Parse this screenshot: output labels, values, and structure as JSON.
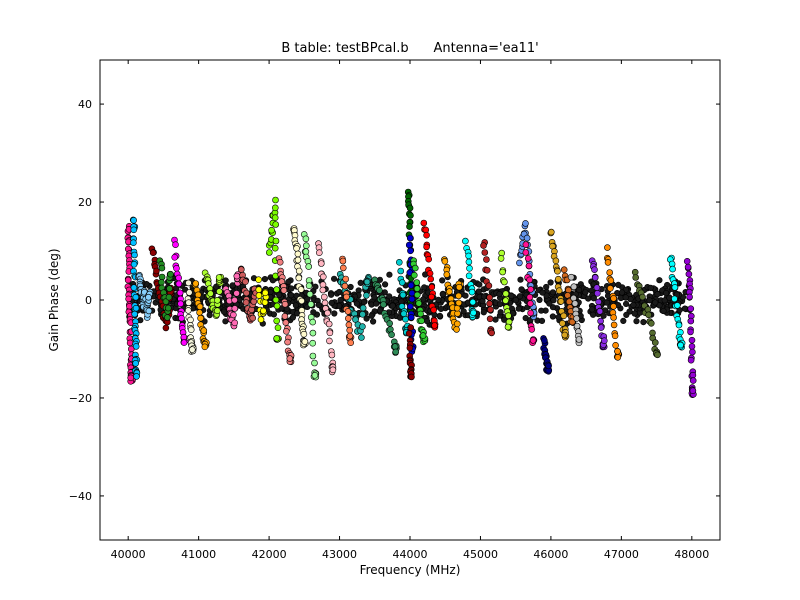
{
  "chart_data": {
    "type": "scatter",
    "title": "B table: testBPcal.b      Antenna='ea11'",
    "xlabel": "Frequency (MHz)",
    "ylabel": "Gain Phase (deg)",
    "xlim": [
      39600,
      48400
    ],
    "ylim": [
      -49,
      49
    ],
    "xticks": [
      40000,
      41000,
      42000,
      43000,
      44000,
      45000,
      46000,
      47000,
      48000
    ],
    "yticks": [
      -40,
      -20,
      0,
      20,
      40
    ],
    "xtick_labels": [
      "40000",
      "41000",
      "42000",
      "43000",
      "44000",
      "45000",
      "46000",
      "47000",
      "48000"
    ],
    "ytick_labels": [
      "−40",
      "−20",
      "0",
      "20",
      "40"
    ],
    "grid": false,
    "marker": "circle-with-black-edge",
    "series": [
      {
        "color": "#ff1493",
        "x": [
          40000,
          40000,
          40010,
          40010,
          40020,
          40030,
          40040,
          40050
        ],
        "y": [
          15,
          12,
          8,
          3,
          -2,
          -6,
          -12,
          -16
        ]
      },
      {
        "color": "#00bfff",
        "x": [
          40080,
          40085,
          40090,
          40095,
          40100,
          40105,
          40110,
          40115
        ],
        "y": [
          17,
          13,
          7,
          1,
          -4,
          -8,
          -12,
          -15
        ]
      },
      {
        "color": "#87cefa",
        "x": [
          40150,
          40180,
          40210,
          40240,
          40270,
          40300
        ],
        "y": [
          5,
          3,
          -1,
          2,
          -3,
          1
        ]
      },
      {
        "color": "#8b0000",
        "x": [
          40350,
          40400,
          40450,
          40500,
          40550,
          40600
        ],
        "y": [
          11,
          6,
          1,
          -3,
          -5,
          2
        ]
      },
      {
        "color": "#228b22",
        "x": [
          40450,
          40500,
          40550,
          40600
        ],
        "y": [
          8,
          2,
          -4,
          5
        ]
      },
      {
        "color": "#ff00ff",
        "x": [
          40650,
          40700,
          40750,
          40800
        ],
        "y": [
          12,
          5,
          -2,
          -8
        ]
      },
      {
        "color": "#f5f5dc",
        "x": [
          40850,
          40870,
          40890,
          40910
        ],
        "y": [
          3,
          -4,
          -8,
          -10
        ]
      },
      {
        "color": "#ffa500",
        "x": [
          40950,
          41000,
          41050,
          41100
        ],
        "y": [
          4,
          0,
          -6,
          -9
        ]
      },
      {
        "color": "#adff2f",
        "x": [
          41100,
          41150,
          41200,
          41250,
          41300
        ],
        "y": [
          6,
          2,
          -1,
          -3,
          4
        ]
      },
      {
        "color": "#ff69b4",
        "x": [
          41400,
          41450,
          41500,
          41550
        ],
        "y": [
          2,
          -3,
          -5,
          5
        ]
      },
      {
        "color": "#cd5c5c",
        "x": [
          41600,
          41650,
          41700,
          41750,
          41800
        ],
        "y": [
          6,
          3,
          -2,
          -4,
          2
        ]
      },
      {
        "color": "#ffff00",
        "x": [
          41850,
          41900,
          41950
        ],
        "y": [
          4,
          -4,
          1
        ]
      },
      {
        "color": "#7cfc00",
        "x": [
          42000,
          42050,
          42080,
          42100,
          42120
        ],
        "y": [
          10,
          15,
          20,
          5,
          -8
        ]
      },
      {
        "color": "#f08080",
        "x": [
          42150,
          42200,
          42250,
          42300
        ],
        "y": [
          8,
          3,
          -6,
          -12
        ]
      },
      {
        "color": "#fffacd",
        "x": [
          42350,
          42380,
          42410,
          42440,
          42470,
          42500
        ],
        "y": [
          15,
          12,
          8,
          2,
          -5,
          -9
        ]
      },
      {
        "color": "#98fb98",
        "x": [
          42500,
          42550,
          42600,
          42650
        ],
        "y": [
          13,
          8,
          -3,
          -15
        ]
      },
      {
        "color": "#ffb6c1",
        "x": [
          42700,
          42750,
          42800,
          42850,
          42900
        ],
        "y": [
          11,
          5,
          -1,
          -6,
          -14
        ]
      },
      {
        "color": "#20b2aa",
        "x": [
          43000,
          43100,
          43200,
          43300,
          43400
        ],
        "y": [
          5,
          2,
          -3,
          -7,
          4
        ]
      },
      {
        "color": "#ff7f50",
        "x": [
          43050,
          43100,
          43150
        ],
        "y": [
          9,
          0,
          -8
        ]
      },
      {
        "color": "#2e8b57",
        "x": [
          43500,
          43600,
          43700,
          43800
        ],
        "y": [
          4,
          0,
          -5,
          -10
        ]
      },
      {
        "color": "#00ced1",
        "x": [
          43850,
          43900,
          43950
        ],
        "y": [
          7,
          -1,
          -6
        ]
      },
      {
        "color": "#006400",
        "x": [
          43980,
          43990,
          44000,
          44005,
          44010
        ],
        "y": [
          22,
          19,
          14,
          5,
          -3
        ]
      },
      {
        "color": "#0000cd",
        "x": [
          44000,
          44010,
          44020,
          44030
        ],
        "y": [
          12,
          5,
          -3,
          -10
        ]
      },
      {
        "color": "#8b0000",
        "x": [
          44000,
          44005,
          44010
        ],
        "y": [
          -6,
          -11,
          -15
        ]
      },
      {
        "color": "#ff0000",
        "x": [
          44200,
          44250,
          44300,
          44350
        ],
        "y": [
          16,
          10,
          3,
          -5
        ]
      },
      {
        "color": "#32cd32",
        "x": [
          44050,
          44100,
          44150,
          44200
        ],
        "y": [
          8,
          2,
          -4,
          -8
        ]
      },
      {
        "color": "#ffa500",
        "x": [
          44500,
          44550,
          44600,
          44650,
          44700
        ],
        "y": [
          8,
          3,
          -2,
          -6,
          3
        ]
      },
      {
        "color": "#00ffff",
        "x": [
          44800,
          44850,
          44900
        ],
        "y": [
          12,
          5,
          -3
        ]
      },
      {
        "color": "#b22222",
        "x": [
          45050,
          45100,
          45150
        ],
        "y": [
          12,
          4,
          -6
        ]
      },
      {
        "color": "#adff2f",
        "x": [
          45300,
          45350,
          45400
        ],
        "y": [
          9,
          2,
          -5
        ]
      },
      {
        "color": "#6495ed",
        "x": [
          45550,
          45600,
          45650,
          45700,
          45750
        ],
        "y": [
          8,
          12,
          15,
          5,
          -3
        ]
      },
      {
        "color": "#ff1493",
        "x": [
          45650,
          45700,
          45750
        ],
        "y": [
          11,
          2,
          -8
        ]
      },
      {
        "color": "#000080",
        "x": [
          45900,
          45920,
          45940,
          45960
        ],
        "y": [
          -8,
          -11,
          -13,
          -14
        ]
      },
      {
        "color": "#daa520",
        "x": [
          46000,
          46050,
          46100,
          46150,
          46200
        ],
        "y": [
          14,
          9,
          4,
          -2,
          -7
        ]
      },
      {
        "color": "#d2691e",
        "x": [
          46200,
          46250,
          46300
        ],
        "y": [
          6,
          1,
          -4
        ]
      },
      {
        "color": "#c0c0c0",
        "x": [
          46300,
          46350,
          46400
        ],
        "y": [
          4,
          -2,
          -8
        ]
      },
      {
        "color": "#8a2be2",
        "x": [
          46600,
          46650,
          46700,
          46750
        ],
        "y": [
          8,
          3,
          -3,
          -9
        ]
      },
      {
        "color": "#ff8c00",
        "x": [
          46800,
          46850,
          46900,
          46950
        ],
        "y": [
          10,
          4,
          -4,
          -11
        ]
      },
      {
        "color": "#556b2f",
        "x": [
          47200,
          47300,
          47400,
          47500
        ],
        "y": [
          5,
          0,
          -4,
          -11
        ]
      },
      {
        "color": "#00ffff",
        "x": [
          47700,
          47750,
          47800,
          47850
        ],
        "y": [
          9,
          3,
          -4,
          -9
        ]
      },
      {
        "color": "#9400d3",
        "x": [
          47950,
          47970,
          47990,
          48000,
          48010
        ],
        "y": [
          8,
          3,
          -6,
          -13,
          -19
        ]
      }
    ],
    "background_noise": {
      "x_range": [
        40000,
        48000
      ],
      "y_range": [
        -6,
        6
      ],
      "color": "#1a1a1a"
    }
  }
}
